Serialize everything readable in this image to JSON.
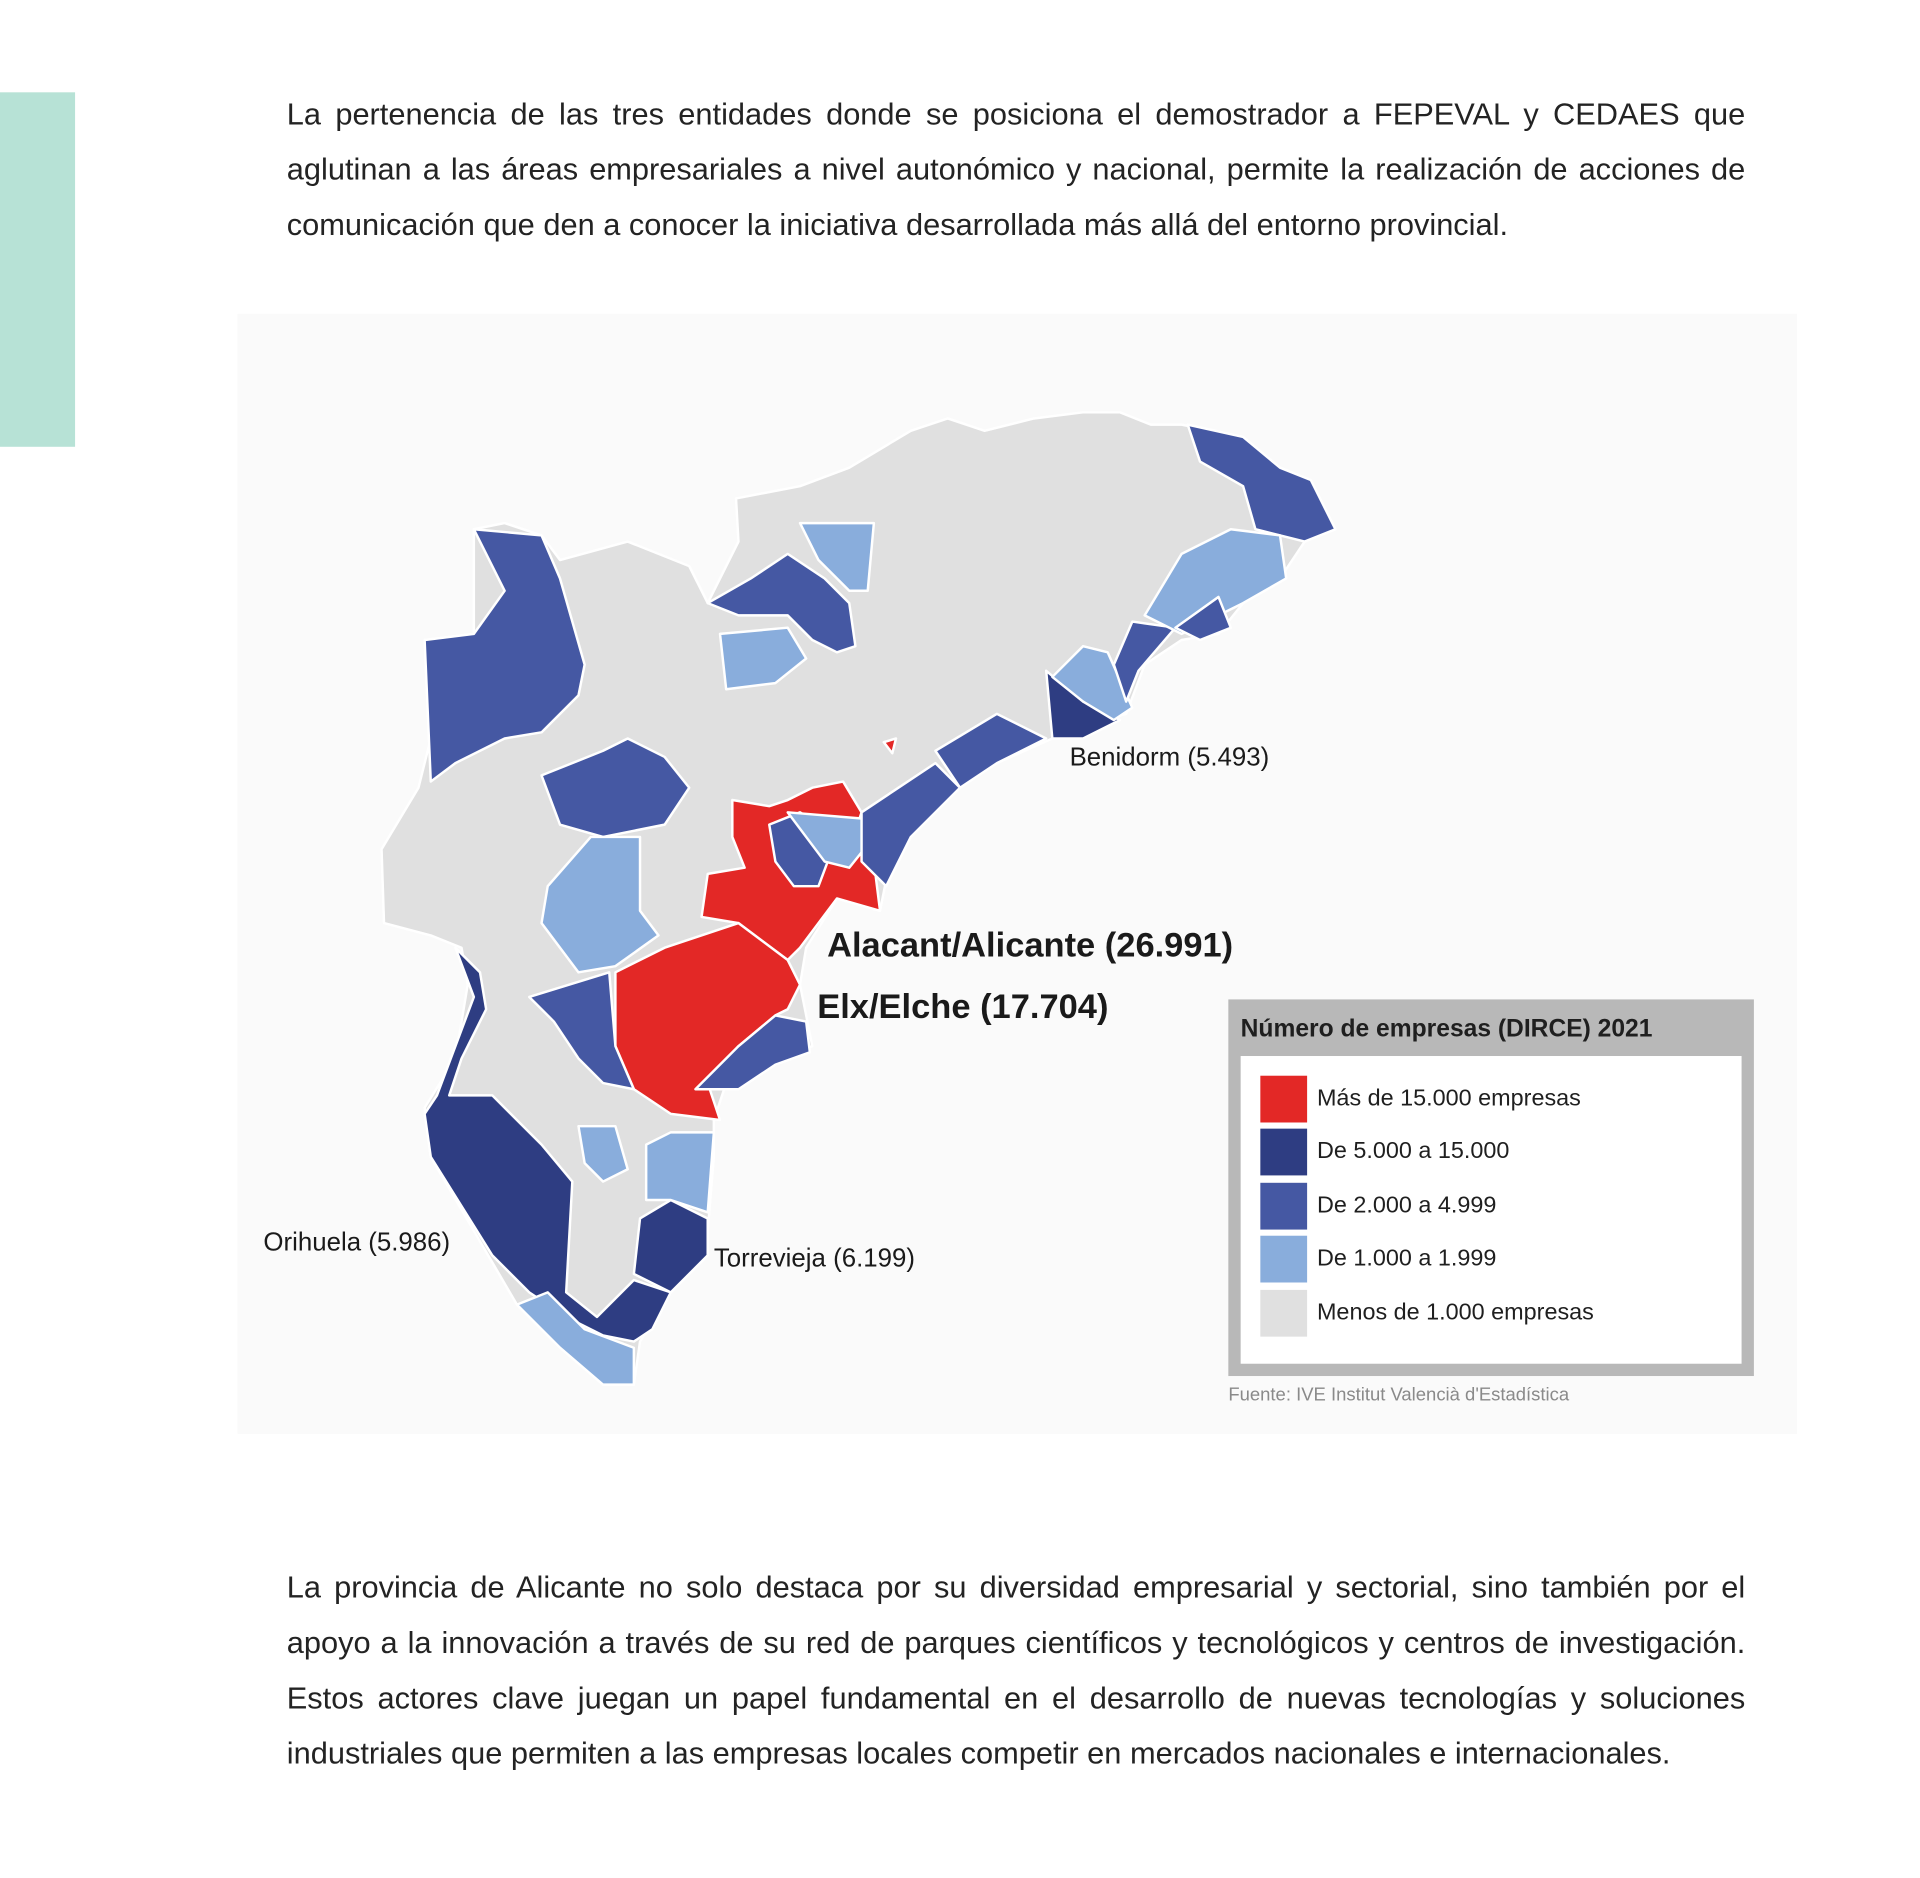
{
  "paragraphs": [
    "La pertenencia de las tres entidades donde se posiciona el demostrador a FEPEVAL y CEDAES que aglutinan a las áreas empresariales a nivel autonómico y nacional, permite la realización de acciones de comunicación que den a conocer la iniciativa desarrollada más allá del entorno provincial.",
    "La provincia de Alicante no solo destaca por su diversidad empresarial y sectorial, sino también por el apoyo a la innovación a través de su red de parques científicos y tecnológicos y centros de investigación. Estos actores clave juegan un papel fundamental en el desarrollo de nuevas tecnologías y soluciones industriales que permiten a las empresas locales competir en mercados nacionales e internacionales."
  ],
  "chart_data": {
    "type": "choropleth-map",
    "title": "Número de empresas (DIRCE) 2021",
    "legend": [
      {
        "label": "Más de 15.000 empresas",
        "color": "#e32826"
      },
      {
        "label": "De 5.000 a 15.000",
        "color": "#2e3d82"
      },
      {
        "label": "De 2.000 a 4.999",
        "color": "#4558a3"
      },
      {
        "label": "De 1.000 a 1.999",
        "color": "#89addc"
      },
      {
        "label": "Menos de 1.000 empresas",
        "color": "#e0e0e0"
      }
    ],
    "legend_position": "bottom-right",
    "labels": {
      "alicante": "Alacant/Alicante (26.991)",
      "elche": "Elx/Elche (17.704)",
      "benidorm": "Benidorm (5.493)",
      "orihuela": "Orihuela (5.986)",
      "torrevieja": "Torrevieja (6.199)"
    },
    "municipalities": [
      {
        "name": "Alacant/Alicante",
        "value": 26991
      },
      {
        "name": "Elx/Elche",
        "value": 17704
      },
      {
        "name": "Benidorm",
        "value": 5493
      },
      {
        "name": "Orihuela",
        "value": 5986
      },
      {
        "name": "Torrevieja",
        "value": 6199
      }
    ],
    "source": "Fuente: IVE Institut Valencià d'Estadística"
  }
}
